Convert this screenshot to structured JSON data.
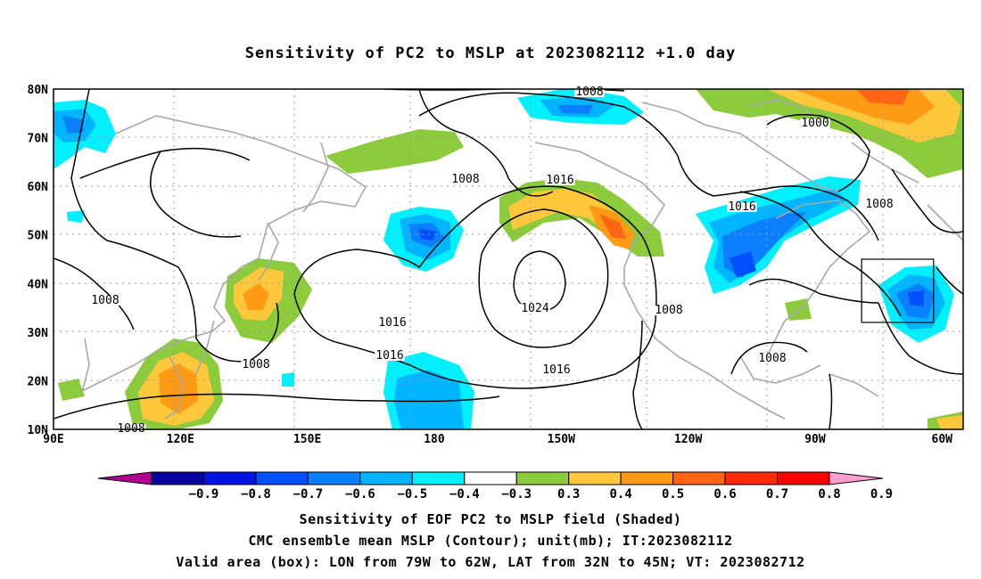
{
  "title": "Sensitivity of PC2 to MSLP at 2023082112 +1.0 day",
  "map": {
    "lon_labels": [
      {
        "lon": 90,
        "text": "90E"
      },
      {
        "lon": 120,
        "text": "120E"
      },
      {
        "lon": 150,
        "text": "150E"
      },
      {
        "lon": 180,
        "text": "180"
      },
      {
        "lon": 210,
        "text": "150W"
      },
      {
        "lon": 240,
        "text": "120W"
      },
      {
        "lon": 270,
        "text": "90W"
      },
      {
        "lon": 300,
        "text": "60W"
      }
    ],
    "lat_labels": [
      {
        "lat": 80,
        "text": "80N"
      },
      {
        "lat": 70,
        "text": "70N"
      },
      {
        "lat": 60,
        "text": "60N"
      },
      {
        "lat": 50,
        "text": "50N"
      },
      {
        "lat": 40,
        "text": "40N"
      },
      {
        "lat": 30,
        "text": "30N"
      },
      {
        "lat": 20,
        "text": "20N"
      },
      {
        "lat": 10,
        "text": "10N"
      }
    ],
    "contour_labels": [
      "1008",
      "1000",
      "1008",
      "1016",
      "1016",
      "1008",
      "1008",
      "1016",
      "1024",
      "1008",
      "1008",
      "1016",
      "1016",
      "1008",
      "1008"
    ],
    "valid_box": {
      "lon_min": 281,
      "lon_max": 298,
      "lat_min": 32,
      "lat_max": 45
    }
  },
  "colorbar": {
    "labels": [
      "-0.9",
      "-0.8",
      "-0.7",
      "-0.6",
      "-0.5",
      "-0.4",
      "-0.3",
      "0.3",
      "0.4",
      "0.5",
      "0.6",
      "0.7",
      "0.8",
      "0.9"
    ],
    "colors": [
      "#b00090",
      "#0a00a0",
      "#0014e6",
      "#0050ff",
      "#0a80ff",
      "#00b4ff",
      "#00f0ff",
      "#ffffff",
      "#8ccc3c",
      "#ffc83c",
      "#ff9a14",
      "#ff6414",
      "#ff2a0a",
      "#ff0000",
      "#ff9ed2"
    ]
  },
  "captions": {
    "line1": "Sensitivity of EOF PC2 to MSLP field (Shaded)",
    "line2": "CMC ensemble mean MSLP (Contour); unit(mb); IT:2023082112",
    "line3": "Valid area (box): LON from 79W to 62W, LAT from 32N to 45N; VT: 2023082712"
  }
}
